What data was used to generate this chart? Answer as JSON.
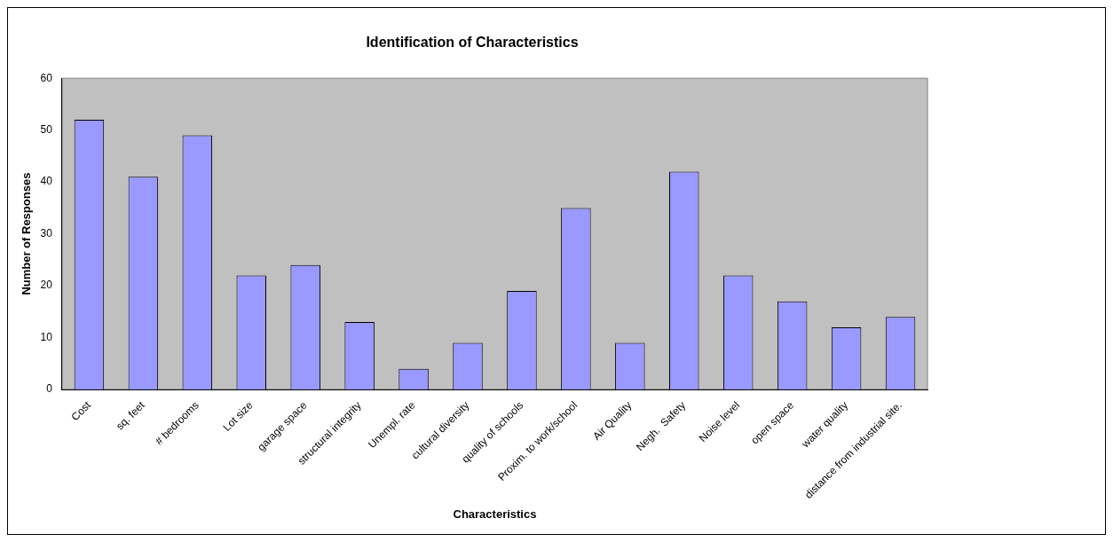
{
  "chart_data": {
    "type": "bar",
    "title": "Identification of Characteristics",
    "xlabel": "Characteristics",
    "ylabel": "Number of Responses",
    "categories": [
      "Cost",
      "sq. feet",
      "# bedrooms",
      "Lot size",
      "garage space",
      "structural integrity",
      "Unempl. rate",
      "cultural diversity",
      "quality of schools",
      "Proxim. to work/school",
      "Air Quality",
      "Negh.  Safety",
      "Noise level",
      "open space",
      "water quality",
      "distance from industrial site."
    ],
    "values": [
      52,
      41,
      49,
      22,
      24,
      13,
      4,
      9,
      19,
      35,
      9,
      42,
      22,
      17,
      12,
      14
    ],
    "color": "#9999ff",
    "ylim": [
      0,
      60
    ],
    "yticks": [
      0,
      10,
      20,
      30,
      40,
      50,
      60
    ],
    "grid": false,
    "legend": false
  }
}
